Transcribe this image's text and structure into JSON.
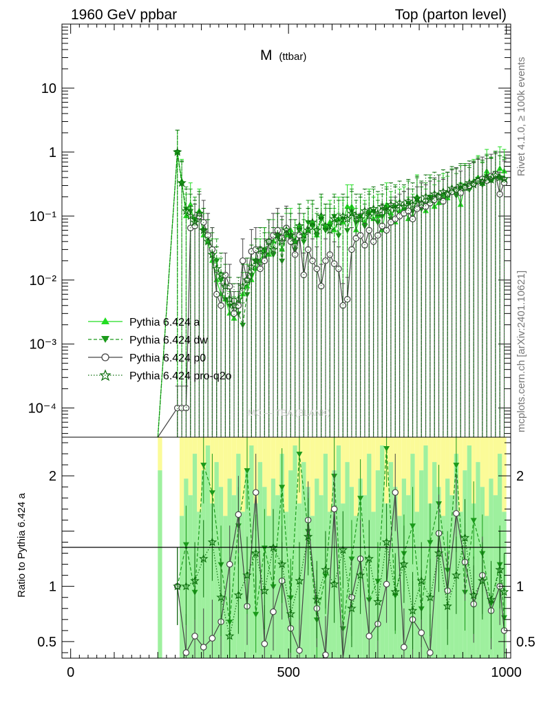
{
  "header": {
    "left": "1960 GeV ppbar",
    "right": "Top (parton level)",
    "observable": "M",
    "observable_sub": "(ttbar)"
  },
  "side_text": {
    "version": "Rivet 4.1.0, ≥ 100k events",
    "source": "mcplots.cern.ch [arXiv:2401.10621]"
  },
  "watermark": "MC — TBA (BLANK)",
  "legend": {
    "items": [
      {
        "label": "Pythia 6.424 a",
        "color": "#22dd22",
        "marker": "triangle-up",
        "line": "solid"
      },
      {
        "label": "Pythia 6.424 dw",
        "color": "#1a9a1a",
        "marker": "triangle-down",
        "line": "dashed"
      },
      {
        "label": "Pythia 6.424 p0",
        "color": "#444444",
        "marker": "circle-open",
        "line": "solid"
      },
      {
        "label": "Pythia 6.424 pro-q2o",
        "color": "#0b6e0b",
        "marker": "star-open",
        "line": "dotted"
      }
    ]
  },
  "colors": {
    "band_green": "#9ef09e",
    "band_yellow": "#fbfb98",
    "ref_line": "#000000"
  },
  "chart_data": [
    {
      "type": "line",
      "panel": "main",
      "title": "M (ttbar)",
      "xlabel": "",
      "ylabel": "",
      "xlim": [
        -20,
        1010
      ],
      "ylim": [
        3.5e-05,
        100
      ],
      "yscale": "log",
      "ytick_labels": [
        "10⁻⁴",
        "10⁻³",
        "10⁻²",
        "10⁻¹",
        "1",
        "10"
      ],
      "x": [
        200,
        245,
        255,
        265,
        275,
        285,
        295,
        305,
        315,
        325,
        335,
        345,
        355,
        365,
        375,
        385,
        395,
        405,
        415,
        425,
        435,
        445,
        455,
        465,
        475,
        485,
        495,
        505,
        515,
        525,
        535,
        545,
        555,
        565,
        575,
        585,
        595,
        605,
        615,
        625,
        635,
        645,
        655,
        665,
        675,
        685,
        695,
        705,
        715,
        725,
        735,
        745,
        755,
        765,
        775,
        785,
        795,
        805,
        815,
        825,
        835,
        845,
        855,
        865,
        875,
        885,
        895,
        905,
        915,
        925,
        935,
        945,
        955,
        965,
        975,
        985,
        995
      ],
      "series": [
        {
          "name": "Pythia 6.424 a",
          "values": [
            0,
            1.0,
            0.35,
            0.1,
            0.15,
            0.07,
            0.12,
            0.05,
            0.04,
            0.02,
            0.01,
            0.006,
            0.005,
            0.003,
            0.0025,
            0.004,
            0.006,
            0.008,
            0.01,
            0.015,
            0.02,
            0.03,
            0.025,
            0.04,
            0.05,
            0.03,
            0.05,
            0.06,
            0.04,
            0.07,
            0.05,
            0.06,
            0.08,
            0.05,
            0.1,
            0.07,
            0.08,
            0.06,
            0.09,
            0.08,
            0.14,
            0.14,
            0.06,
            0.1,
            0.08,
            0.12,
            0.09,
            0.1,
            0.06,
            0.15,
            0.11,
            0.08,
            0.12,
            0.13,
            0.09,
            0.1,
            0.2,
            0.15,
            0.12,
            0.18,
            0.14,
            0.16,
            0.21,
            0.19,
            0.24,
            0.26,
            0.15,
            0.3,
            0.28,
            0.35,
            0.4,
            0.32,
            0.5,
            0.38,
            0.45,
            0.55,
            0.5
          ]
        },
        {
          "name": "Pythia 6.424 dw",
          "values": [
            0,
            1.0,
            0.32,
            0.13,
            0.12,
            0.09,
            0.1,
            0.06,
            0.05,
            0.03,
            0.02,
            0.01,
            0.005,
            0.004,
            0.003,
            0.003,
            0.002,
            0.006,
            0.012,
            0.02,
            0.015,
            0.03,
            0.04,
            0.025,
            0.05,
            0.02,
            0.06,
            0.05,
            0.03,
            0.06,
            0.04,
            0.08,
            0.07,
            0.05,
            0.09,
            0.06,
            0.07,
            0.1,
            0.05,
            0.09,
            0.06,
            0.12,
            0.08,
            0.1,
            0.07,
            0.11,
            0.12,
            0.08,
            0.1,
            0.13,
            0.09,
            0.14,
            0.1,
            0.11,
            0.16,
            0.12,
            0.18,
            0.13,
            0.15,
            0.2,
            0.17,
            0.2,
            0.18,
            0.22,
            0.25,
            0.21,
            0.28,
            0.3,
            0.26,
            0.33,
            0.38,
            0.31,
            0.42,
            0.36,
            0.47,
            0.4,
            0.35
          ]
        },
        {
          "name": "Pythia 6.424 p0",
          "values": [
            0,
            0.0001,
            0.0001,
            0.0001,
            0.065,
            0.07,
            0.1,
            0.08,
            0.05,
            0.03,
            0.006,
            0.004,
            0.012,
            0.008,
            0.003,
            0.004,
            0.02,
            0.01,
            0.028,
            0.03,
            0.015,
            0.02,
            0.04,
            0.05,
            0.06,
            0.045,
            0.065,
            0.04,
            0.025,
            0.05,
            0.012,
            0.03,
            0.02,
            0.015,
            0.008,
            0.02,
            0.025,
            0.018,
            0.015,
            0.004,
            0.005,
            0.03,
            0.045,
            0.05,
            0.035,
            0.06,
            0.04,
            0.05,
            0.07,
            0.06,
            0.08,
            0.09,
            0.1,
            0.11,
            0.12,
            0.09,
            0.13,
            0.15,
            0.14,
            0.16,
            0.18,
            0.2,
            0.17,
            0.22,
            0.24,
            0.26,
            0.23,
            0.28,
            0.3,
            0.32,
            0.35,
            0.38,
            0.36,
            0.42,
            0.45,
            0.22,
            0.33
          ]
        },
        {
          "name": "Pythia 6.424 pro-q2o",
          "values": [
            0,
            1.0,
            0.33,
            0.12,
            0.1,
            0.08,
            0.11,
            0.06,
            0.04,
            0.025,
            0.015,
            0.012,
            0.008,
            0.005,
            0.004,
            0.005,
            0.008,
            0.01,
            0.016,
            0.02,
            0.03,
            0.025,
            0.04,
            0.03,
            0.05,
            0.04,
            0.06,
            0.05,
            0.04,
            0.07,
            0.05,
            0.06,
            0.08,
            0.06,
            0.1,
            0.07,
            0.06,
            0.09,
            0.08,
            0.1,
            0.09,
            0.11,
            0.1,
            0.09,
            0.12,
            0.1,
            0.13,
            0.11,
            0.14,
            0.12,
            0.15,
            0.13,
            0.16,
            0.14,
            0.17,
            0.15,
            0.19,
            0.16,
            0.2,
            0.18,
            0.22,
            0.2,
            0.24,
            0.22,
            0.27,
            0.25,
            0.3,
            0.28,
            0.33,
            0.31,
            0.36,
            0.34,
            0.4,
            0.37,
            0.43,
            0.4,
            0.38
          ]
        }
      ]
    },
    {
      "type": "line",
      "panel": "ratio",
      "title": "",
      "xlabel": "",
      "ylabel": "Ratio to Pythia 6.424 a",
      "xlim": [
        -20,
        1010
      ],
      "ylim": [
        0.35,
        2.35
      ],
      "ytick_labels": [
        "0.5",
        "1",
        "2"
      ],
      "xtick_labels": [
        "0",
        "500",
        "1000"
      ],
      "reference": 1.0,
      "x": [
        245,
        265,
        285,
        305,
        325,
        345,
        365,
        385,
        405,
        425,
        445,
        465,
        485,
        505,
        525,
        545,
        565,
        585,
        605,
        625,
        645,
        665,
        685,
        705,
        725,
        745,
        765,
        785,
        805,
        825,
        845,
        865,
        885,
        905,
        925,
        945,
        965,
        985,
        995
      ],
      "series": [
        {
          "name": "Pythia 6.424 dw",
          "values": [
            1.0,
            1.38,
            0.95,
            2.1,
            1.85,
            1.2,
            0.68,
            1.55,
            2.05,
            0.75,
            1.35,
            1.0,
            1.9,
            0.9,
            2.2,
            1.5,
            0.7,
            1.1,
            2.0,
            0.62,
            1.25,
            1.8,
            0.88,
            1.05,
            2.25,
            0.92,
            1.3,
            1.55,
            0.8,
            1.4,
            1.75,
            1.15,
            2.1,
            0.95,
            1.6,
            1.3,
            0.85,
            1.2,
            0.72
          ]
        },
        {
          "name": "Pythia 6.424 p0",
          "values": [
            1.0,
            0.4,
            0.55,
            0.45,
            0.53,
            0.68,
            1.2,
            1.65,
            0.82,
            1.85,
            0.48,
            0.77,
            1.05,
            0.62,
            0.42,
            1.6,
            0.8,
            0.38,
            1.7,
            0.33,
            0.9,
            1.25,
            0.55,
            0.66,
            1.02,
            1.85,
            0.45,
            0.7,
            0.58,
            0.4,
            1.48,
            0.96,
            1.66,
            1.22,
            0.84,
            1.1,
            0.78,
            1.0,
            0.6
          ]
        },
        {
          "name": "Pythia 6.424 pro-q2o",
          "values": [
            1.0,
            1.0,
            1.05,
            1.25,
            1.4,
            0.9,
            0.55,
            0.92,
            1.1,
            1.3,
            0.96,
            1.35,
            1.2,
            0.75,
            1.05,
            1.45,
            0.88,
            1.15,
            1.02,
            1.33,
            0.8,
            1.1,
            1.25,
            0.86,
            1.4,
            0.95,
            1.2,
            0.78,
            1.05,
            0.9,
            1.3,
            0.82,
            1.1,
            1.44,
            0.92,
            1.05,
            0.88,
            1.15,
            0.95
          ]
        }
      ]
    }
  ]
}
